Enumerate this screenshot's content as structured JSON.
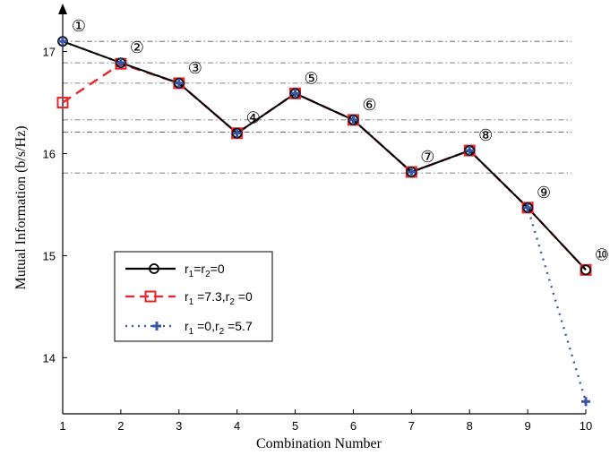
{
  "chart_data": {
    "type": "line",
    "xlabel": "Combination Number",
    "ylabel": "Mutual Information (b/s/Hz)",
    "xlim": [
      1,
      10
    ],
    "ylim": [
      13.45,
      17.4
    ],
    "x": [
      1,
      2,
      3,
      4,
      5,
      6,
      7,
      8,
      9,
      10
    ],
    "x_ticks": [
      "1",
      "2",
      "3",
      "4",
      "5",
      "6",
      "7",
      "8",
      "9",
      "10"
    ],
    "y_ticks": [
      "14",
      "15",
      "16",
      "17"
    ],
    "y_tick_values": [
      14,
      15,
      16,
      17
    ],
    "reference_lines": [
      17.1,
      16.89,
      16.69,
      16.33,
      16.21,
      15.81
    ],
    "annotations": [
      {
        "x": 1,
        "y": 17.1,
        "label": "①"
      },
      {
        "x": 2,
        "y": 16.89,
        "label": "②"
      },
      {
        "x": 3,
        "y": 16.69,
        "label": "③"
      },
      {
        "x": 4,
        "y": 16.2,
        "label": "④"
      },
      {
        "x": 5,
        "y": 16.59,
        "label": "⑤"
      },
      {
        "x": 6,
        "y": 16.33,
        "label": "⑥"
      },
      {
        "x": 7,
        "y": 15.82,
        "label": "⑦"
      },
      {
        "x": 8,
        "y": 16.03,
        "label": "⑧"
      },
      {
        "x": 9,
        "y": 15.47,
        "label": "⑨"
      },
      {
        "x": 10,
        "y": 14.86,
        "label": "⑩"
      }
    ],
    "series": [
      {
        "key": "r0",
        "label": "r1=r2=0",
        "color": "#000000",
        "dash": "solid",
        "marker": "circle",
        "values": [
          17.1,
          16.89,
          16.69,
          16.2,
          16.59,
          16.33,
          15.82,
          16.03,
          15.47,
          14.86
        ]
      },
      {
        "key": "r1",
        "label": "r1=7.3,r2=0",
        "color": "#e8232a",
        "dash": "dashed",
        "marker": "square",
        "values": [
          16.5,
          16.88,
          16.69,
          16.2,
          16.59,
          16.33,
          15.82,
          16.03,
          15.47,
          14.86
        ]
      },
      {
        "key": "r2",
        "label": "r1=0,r2=5.7",
        "color": "#3b56a5",
        "dash": "dotted",
        "marker": "plus",
        "values": [
          17.1,
          16.89,
          16.69,
          16.2,
          16.59,
          16.33,
          15.82,
          16.03,
          15.47,
          13.57
        ]
      }
    ],
    "legend": {
      "position": "lower-left",
      "entries": [
        {
          "series": "r0",
          "parts": [
            [
              "r",
              ""
            ],
            [
              "1",
              "sub"
            ],
            [
              "=r",
              ""
            ],
            [
              "2",
              "sub"
            ],
            [
              "=0",
              ""
            ]
          ]
        },
        {
          "series": "r1",
          "parts": [
            [
              "r",
              ""
            ],
            [
              "1",
              "sub"
            ],
            [
              " =7.3,r",
              ""
            ],
            [
              "2",
              "sub"
            ],
            [
              " =0",
              ""
            ]
          ]
        },
        {
          "series": "r2",
          "parts": [
            [
              "r",
              ""
            ],
            [
              "1",
              "sub"
            ],
            [
              " =0,r",
              ""
            ],
            [
              "2",
              "sub"
            ],
            [
              " =5.7",
              ""
            ]
          ]
        }
      ]
    }
  }
}
